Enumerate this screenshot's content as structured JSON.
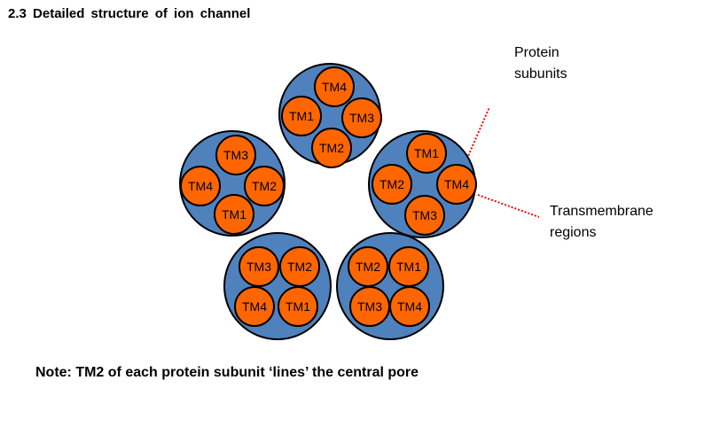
{
  "heading": "2.3  Detailed  structure  of  ion  channel",
  "note": "Note: TM2 of each protein subunit ‘lines’ the central pore",
  "colors": {
    "subunit_fill": "#4f81bd",
    "region_fill": "#ff6600",
    "outline": "#000000",
    "leader_line": "#ff0000"
  },
  "callouts": {
    "protein_subunits": [
      "Protein",
      "subunits"
    ],
    "transmembrane_regions": [
      "Transmembrane",
      "regions"
    ]
  },
  "subunits": [
    {
      "id": "top",
      "regions": [
        "TM4",
        "TM1",
        "TM3",
        "TM2"
      ]
    },
    {
      "id": "left",
      "regions": [
        "TM3",
        "TM4",
        "TM2",
        "TM1"
      ]
    },
    {
      "id": "right",
      "regions": [
        "TM1",
        "TM2",
        "TM4",
        "TM3"
      ]
    },
    {
      "id": "bottom-left",
      "regions": [
        "TM3",
        "TM2",
        "TM4",
        "TM1"
      ]
    },
    {
      "id": "bottom-right",
      "regions": [
        "TM2",
        "TM1",
        "TM3",
        "TM4"
      ]
    }
  ]
}
